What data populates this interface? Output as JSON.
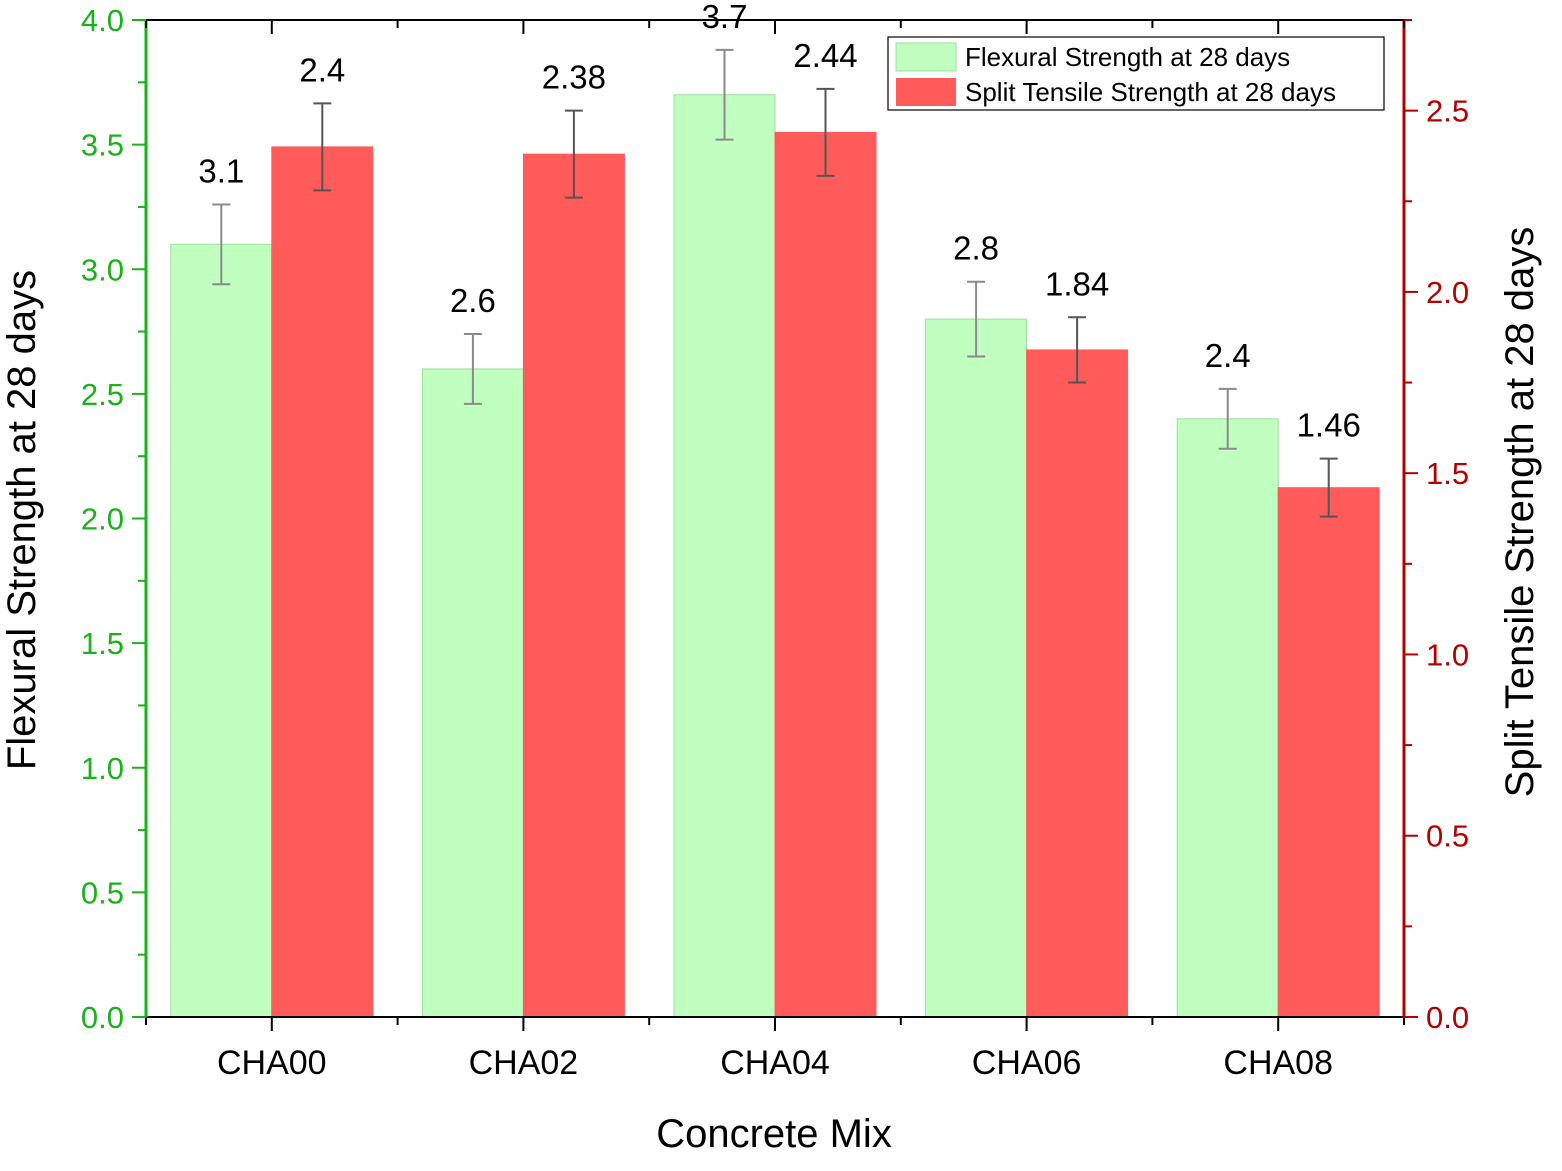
{
  "chart_data": {
    "type": "bar",
    "categories": [
      "CHA00",
      "CHA02",
      "CHA04",
      "CHA06",
      "CHA08"
    ],
    "xlabel": "Concrete Mix",
    "series": [
      {
        "name": "Flexural Strength at 28 days",
        "axis": "left",
        "color": "#c0ffc0",
        "values": [
          3.1,
          2.6,
          3.7,
          2.8,
          2.4
        ],
        "error": [
          0.16,
          0.14,
          0.18,
          0.15,
          0.12
        ],
        "data_labels": [
          "3.1",
          "2.6",
          "3.7",
          "2.8",
          "2.4"
        ]
      },
      {
        "name": "Split Tensile Strength at 28 days",
        "axis": "right",
        "color": "#ff5b5b",
        "values": [
          2.4,
          2.38,
          2.44,
          1.84,
          1.46
        ],
        "error": [
          0.12,
          0.12,
          0.12,
          0.09,
          0.08
        ],
        "data_labels": [
          "2.4",
          "2.38",
          "2.44",
          "1.84",
          "1.46"
        ]
      }
    ],
    "y_left": {
      "label": "Flexural Strength at 28 days",
      "ylim": [
        0,
        4.0
      ],
      "ticks": [
        "0.0",
        "0.5",
        "1.0",
        "1.5",
        "2.0",
        "2.5",
        "3.0",
        "3.5",
        "4.0"
      ],
      "color": "#19b219"
    },
    "y_right": {
      "label": "Split Tensile Strength at 28 days",
      "ylim": [
        0,
        2.75
      ],
      "ticks": [
        "0.0",
        "0.5",
        "1.0",
        "1.5",
        "2.0",
        "2.5"
      ],
      "color": "#b20000"
    },
    "legend_position": "top-right",
    "grid": false
  }
}
